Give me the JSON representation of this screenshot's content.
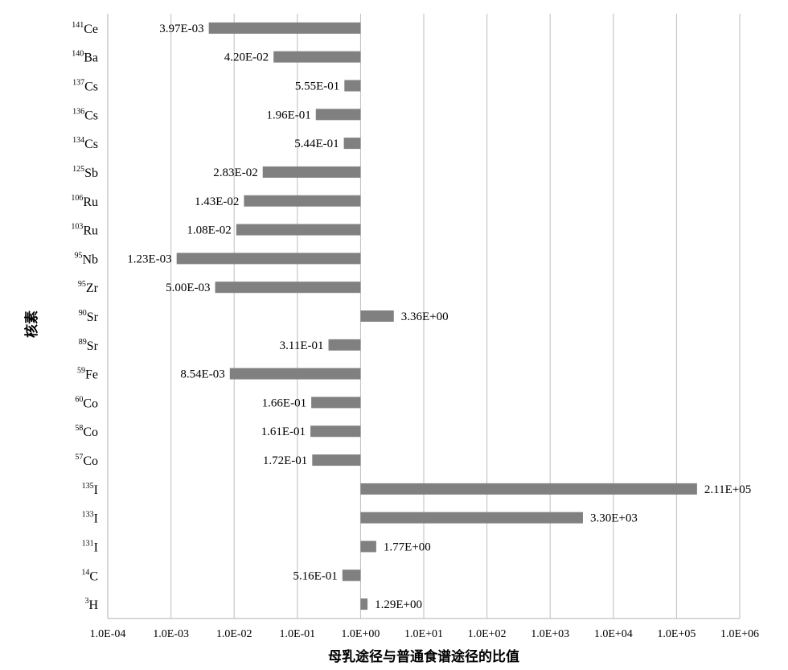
{
  "chart_data": {
    "type": "bar",
    "orientation": "horizontal",
    "x_scale": "log",
    "xlim": [
      0.0001,
      1000000
    ],
    "xticks": [
      "1.0E-04",
      "1.0E-03",
      "1.0E-02",
      "1.0E-01",
      "1.0E+00",
      "1.0E+01",
      "1.0E+02",
      "1.0E+03",
      "1.0E+04",
      "1.0E+05",
      "1.0E+06"
    ],
    "xlabel": "母乳途径与普通食谱途径的比值",
    "ylabel": "核素",
    "grid": "vertical",
    "bar_color": "#808080",
    "categories": [
      {
        "mass": "141",
        "symbol": "Ce"
      },
      {
        "mass": "140",
        "symbol": "Ba"
      },
      {
        "mass": "137",
        "symbol": "Cs"
      },
      {
        "mass": "136",
        "symbol": "Cs"
      },
      {
        "mass": "134",
        "symbol": "Cs"
      },
      {
        "mass": "125",
        "symbol": "Sb"
      },
      {
        "mass": "106",
        "symbol": "Ru"
      },
      {
        "mass": "103",
        "symbol": "Ru"
      },
      {
        "mass": "95",
        "symbol": "Nb"
      },
      {
        "mass": "95",
        "symbol": "Zr"
      },
      {
        "mass": "90",
        "symbol": "Sr"
      },
      {
        "mass": "89",
        "symbol": "Sr"
      },
      {
        "mass": "59",
        "symbol": "Fe"
      },
      {
        "mass": "60",
        "symbol": "Co"
      },
      {
        "mass": "58",
        "symbol": "Co"
      },
      {
        "mass": "57",
        "symbol": "Co"
      },
      {
        "mass": "135",
        "symbol": "I"
      },
      {
        "mass": "133",
        "symbol": "I"
      },
      {
        "mass": "131",
        "symbol": "I"
      },
      {
        "mass": "14",
        "symbol": "C"
      },
      {
        "mass": "3",
        "symbol": "H"
      }
    ],
    "values": [
      0.00397,
      0.042,
      0.555,
      0.196,
      0.544,
      0.0283,
      0.0143,
      0.0108,
      0.00123,
      0.005,
      3.36,
      0.311,
      0.00854,
      0.166,
      0.161,
      0.172,
      211000,
      3300,
      1.77,
      0.516,
      1.29
    ],
    "value_labels": [
      "3.97E-03",
      "4.20E-02",
      "5.55E-01",
      "1.96E-01",
      "5.44E-01",
      "2.83E-02",
      "1.43E-02",
      "1.08E-02",
      "1.23E-03",
      "5.00E-03",
      "3.36E+00",
      "3.11E-01",
      "8.54E-03",
      "1.66E-01",
      "1.61E-01",
      "1.72E-01",
      "2.11E+05",
      "3.30E+03",
      "1.77E+00",
      "5.16E-01",
      "1.29E+00"
    ]
  }
}
